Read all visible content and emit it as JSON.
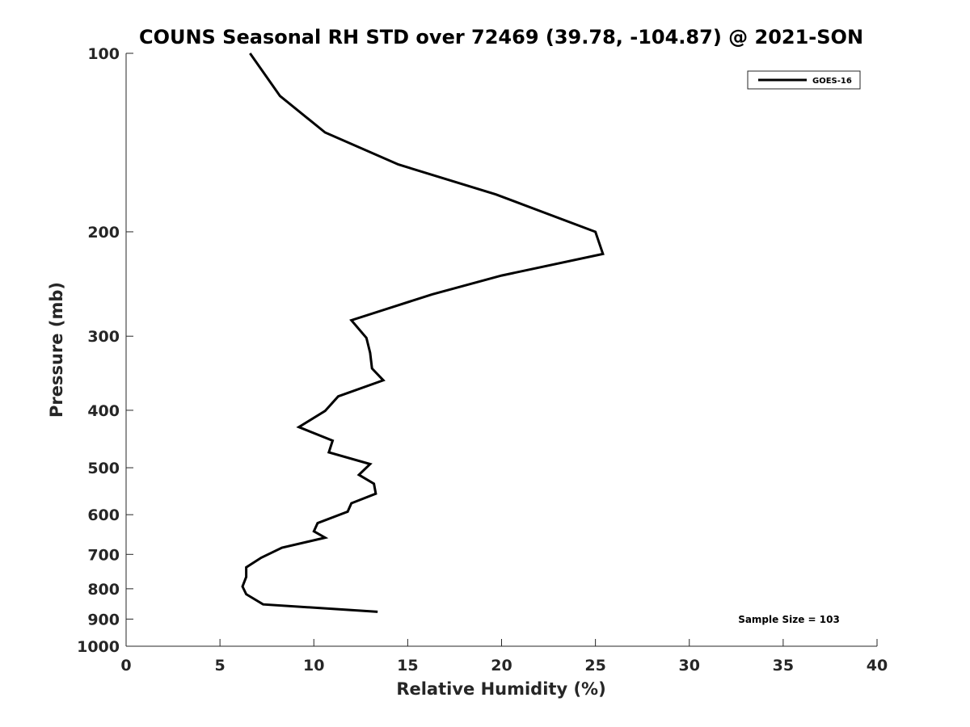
{
  "chart_data": {
    "type": "line",
    "title": "COUNS Seasonal RH STD over 72469 (39.78, -104.87) @ 2021-SON",
    "xlabel": "Relative Humidity (%)",
    "ylabel": "Pressure (mb)",
    "xlim": [
      0,
      40
    ],
    "ylim": [
      100,
      1000
    ],
    "yscale": "log",
    "y_reversed": true,
    "xticks": [
      0,
      5,
      10,
      15,
      20,
      25,
      30,
      35,
      40
    ],
    "yticks": [
      100,
      200,
      300,
      400,
      500,
      600,
      700,
      800,
      900,
      1000
    ],
    "grid": false,
    "legend_position": "top-right",
    "annotation": "Sample Size = 103",
    "series": [
      {
        "name": "GOES-16",
        "color": "#000000",
        "points": [
          {
            "x": 6.6,
            "p": 100
          },
          {
            "x": 8.2,
            "p": 118
          },
          {
            "x": 10.6,
            "p": 136
          },
          {
            "x": 14.5,
            "p": 154
          },
          {
            "x": 19.7,
            "p": 173
          },
          {
            "x": 25.0,
            "p": 200
          },
          {
            "x": 25.4,
            "p": 218
          },
          {
            "x": 20.0,
            "p": 237
          },
          {
            "x": 16.3,
            "p": 255
          },
          {
            "x": 12.0,
            "p": 282
          },
          {
            "x": 12.8,
            "p": 302
          },
          {
            "x": 13.0,
            "p": 320
          },
          {
            "x": 13.1,
            "p": 340
          },
          {
            "x": 13.7,
            "p": 356
          },
          {
            "x": 11.3,
            "p": 379
          },
          {
            "x": 10.6,
            "p": 401
          },
          {
            "x": 9.2,
            "p": 427
          },
          {
            "x": 11.0,
            "p": 450
          },
          {
            "x": 10.8,
            "p": 471
          },
          {
            "x": 13.0,
            "p": 493
          },
          {
            "x": 12.4,
            "p": 514
          },
          {
            "x": 13.2,
            "p": 532
          },
          {
            "x": 13.3,
            "p": 553
          },
          {
            "x": 12.0,
            "p": 574
          },
          {
            "x": 11.8,
            "p": 593
          },
          {
            "x": 10.2,
            "p": 620
          },
          {
            "x": 10.0,
            "p": 640
          },
          {
            "x": 10.6,
            "p": 656
          },
          {
            "x": 8.3,
            "p": 682
          },
          {
            "x": 7.2,
            "p": 709
          },
          {
            "x": 6.4,
            "p": 736
          },
          {
            "x": 6.4,
            "p": 764
          },
          {
            "x": 6.2,
            "p": 793
          },
          {
            "x": 6.4,
            "p": 817
          },
          {
            "x": 7.3,
            "p": 850
          },
          {
            "x": 13.4,
            "p": 875
          }
        ]
      }
    ]
  }
}
